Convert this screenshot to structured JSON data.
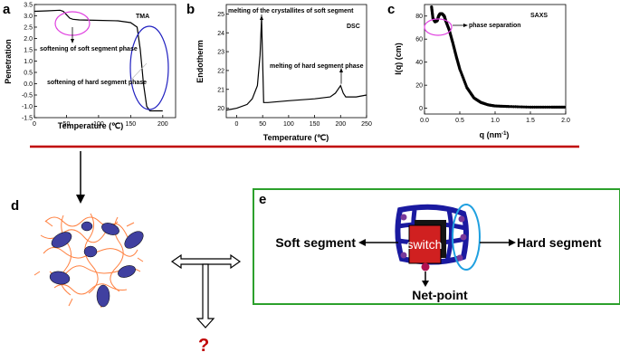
{
  "panels": {
    "a": "a",
    "b": "b",
    "c": "c",
    "d": "d",
    "e": "e"
  },
  "chart_data": [
    {
      "type": "line",
      "panel": "a",
      "method": "TMA",
      "xlabel": "Temperature (℃)",
      "ylabel": "Penetration",
      "xlim": [
        0,
        220
      ],
      "ylim": [
        -1.5,
        3.5
      ],
      "xticks": [
        0,
        50,
        100,
        150,
        200
      ],
      "yticks": [
        -1.5,
        -1.0,
        -0.5,
        0.0,
        0.5,
        1.0,
        1.5,
        2.0,
        2.5,
        3.0,
        3.5
      ],
      "x": [
        0,
        20,
        40,
        45,
        50,
        55,
        60,
        70,
        100,
        130,
        150,
        160,
        165,
        170,
        175,
        180,
        200
      ],
      "y": [
        3.2,
        3.22,
        3.25,
        3.2,
        3.05,
        2.9,
        2.85,
        2.82,
        2.8,
        2.78,
        2.7,
        2.5,
        1.5,
        0.0,
        -1.0,
        -1.2,
        -1.2
      ],
      "annotations": [
        "softening of soft segment phase",
        "softening of hard segment phase"
      ]
    },
    {
      "type": "line",
      "panel": "b",
      "method": "DSC",
      "xlabel": "Temperature (℃)",
      "ylabel": "Endotherm",
      "xlim": [
        -20,
        250
      ],
      "ylim": [
        19.5,
        25.5
      ],
      "xticks": [
        0,
        50,
        100,
        150,
        200,
        250
      ],
      "yticks": [
        20,
        21,
        22,
        23,
        24,
        25
      ],
      "x": [
        -20,
        0,
        20,
        30,
        40,
        45,
        48,
        52,
        60,
        100,
        150,
        180,
        190,
        195,
        200,
        205,
        210,
        230,
        250
      ],
      "y": [
        19.9,
        20.0,
        20.2,
        20.5,
        21.2,
        22.8,
        24.8,
        20.3,
        20.3,
        20.4,
        20.5,
        20.6,
        20.8,
        21.0,
        21.2,
        20.8,
        20.6,
        20.6,
        20.7
      ],
      "annotations": [
        "melting of the crystallites of soft segment",
        "melting of hard segment phase"
      ]
    },
    {
      "type": "scatter",
      "panel": "c",
      "method": "SAXS",
      "xlabel": "q (nm",
      "xlabel_sup": "-1",
      "xlabel_end": ")",
      "ylabel": "I(q) (cm",
      "ylabel_end": ")",
      "xlim": [
        0,
        2.0
      ],
      "ylim": [
        -5,
        90
      ],
      "xticks": [
        0.0,
        0.5,
        1.0,
        1.5,
        2.0
      ],
      "yticks": [
        0,
        20,
        40,
        60,
        80
      ],
      "x": [
        0.1,
        0.12,
        0.15,
        0.18,
        0.2,
        0.22,
        0.25,
        0.28,
        0.3,
        0.35,
        0.4,
        0.45,
        0.5,
        0.6,
        0.7,
        0.8,
        0.9,
        1.0,
        1.2,
        1.5,
        1.8,
        2.0
      ],
      "y": [
        88,
        78,
        75,
        76,
        80,
        82,
        82,
        80,
        76,
        68,
        57,
        45,
        34,
        18,
        9,
        5,
        3,
        2,
        1.5,
        1,
        1,
        1
      ],
      "annotations": [
        "phase separation"
      ]
    }
  ],
  "schematic": {
    "soft_segment": "Soft segment",
    "hard_segment": "Hard segment",
    "net_point": "Net-point",
    "switch": "switch",
    "question": "?"
  },
  "colors": {
    "divider": "#c00000",
    "frame_e": "#2ca02c",
    "circle_a1": "#e040e0",
    "ellipse_a2": "#2020c0",
    "chain": "#ff8040",
    "domain": "#4040a0",
    "network": "#1a1aa0",
    "ellipse_e": "#1fa0e0",
    "switch_box": "#d02020"
  }
}
